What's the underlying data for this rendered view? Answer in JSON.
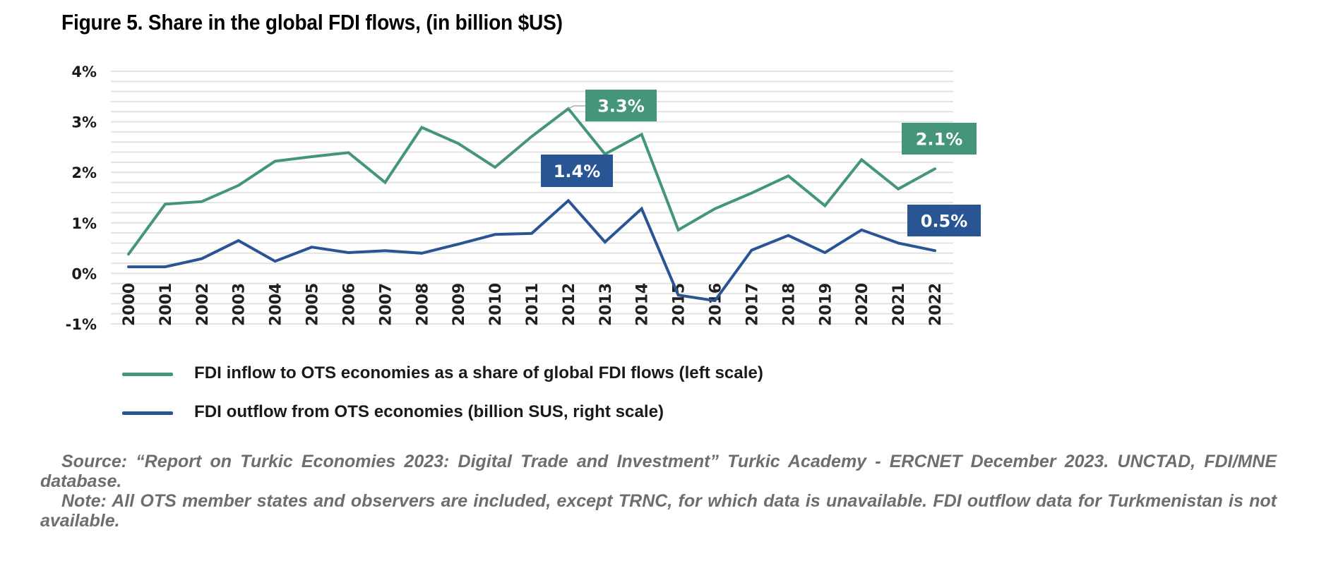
{
  "title": "Figure 5. Share in the global FDI flows, (in billion $US)",
  "colors": {
    "inflow": "#45957a",
    "outflow": "#2a5595",
    "grid": "#e3e3e3",
    "text": "#1a1a1a",
    "note": "#6d6e71"
  },
  "chart_data": {
    "type": "line",
    "title": "Figure 5. Share in the global FDI flows, (in billion $US)",
    "xlabel": "",
    "ylabel": "",
    "ylim": [
      -1,
      4
    ],
    "yticks": [
      "4%",
      "3%",
      "2%",
      "1%",
      "0%",
      "-1%"
    ],
    "ytick_values": [
      4,
      3,
      2,
      1,
      0,
      -1
    ],
    "minor_grid_step": 0.2,
    "grid": true,
    "legend_position": "bottom",
    "x": [
      "2000",
      "2001",
      "2002",
      "2003",
      "2004",
      "2005",
      "2006",
      "2007",
      "2008",
      "2009",
      "2010",
      "2011",
      "2012",
      "2013",
      "2014",
      "2015",
      "2016",
      "2017",
      "2018",
      "2019",
      "2020",
      "2021",
      "2022"
    ],
    "series": [
      {
        "name": "FDI inflow to OTS economies as a share of global FDI flows (left scale)",
        "color": "#45957a",
        "values": [
          0.38,
          1.37,
          1.42,
          1.74,
          2.22,
          2.31,
          2.39,
          1.8,
          2.89,
          2.57,
          2.1,
          2.71,
          3.26,
          2.36,
          2.75,
          0.86,
          1.28,
          1.59,
          1.93,
          1.34,
          2.25,
          1.67,
          2.07
        ]
      },
      {
        "name": "FDI outflow from OTS economies (billion SUS, right scale)",
        "color": "#2a5595",
        "values": [
          0.13,
          0.13,
          0.29,
          0.65,
          0.24,
          0.52,
          0.41,
          0.45,
          0.4,
          0.58,
          0.77,
          0.79,
          1.44,
          0.62,
          1.28,
          -0.43,
          -0.54,
          0.46,
          0.75,
          0.41,
          0.86,
          0.6,
          0.45
        ]
      }
    ],
    "annotations": [
      {
        "text": "3.3%",
        "series": 0,
        "x": "2012",
        "color": "#45957a"
      },
      {
        "text": "1.4%",
        "series": 1,
        "x": "2012",
        "color": "#2a5595"
      },
      {
        "text": "2.1%",
        "series": 0,
        "x": "2022",
        "color": "#45957a"
      },
      {
        "text": "0.5%",
        "series": 1,
        "x": "2022",
        "color": "#2a5595"
      }
    ]
  },
  "legend": [
    {
      "label": "FDI inflow to OTS economies as a share of global FDI flows (left scale)",
      "color": "#45957a"
    },
    {
      "label": "FDI outflow from OTS economies (billion SUS, right scale)",
      "color": "#2a5595"
    }
  ],
  "notes": {
    "source": "Source: “Report on Turkic Economies 2023: Digital Trade and Investment” Turkic Academy - ERCNET December 2023. UNCTAD, FDI/MNE database.",
    "note": "Note: All OTS member states and observers are included, except TRNC, for which data is unavailable. FDI outflow data for Turkmenistan is not available."
  }
}
